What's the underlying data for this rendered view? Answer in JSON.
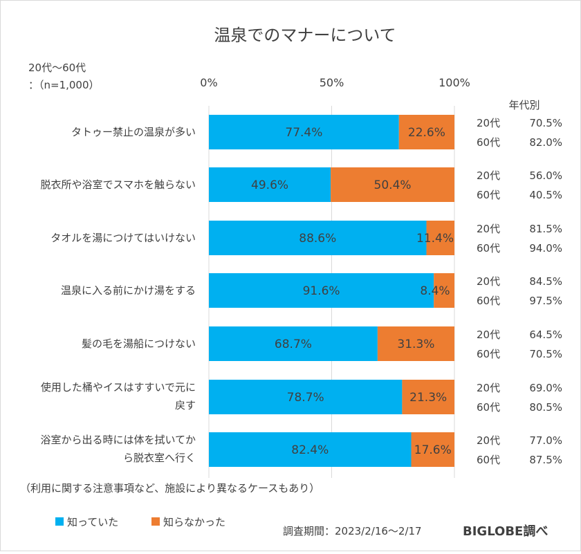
{
  "chart_data": {
    "type": "bar",
    "stacked": true,
    "orientation": "horizontal",
    "title": "温泉でのマナーについて",
    "subtitle_lines": [
      "20代～60代",
      "：（n=1,000）"
    ],
    "x_ticks": [
      "0%",
      "50%",
      "100%"
    ],
    "xlim": [
      0,
      100
    ],
    "categories": [
      [
        "タトゥー禁止の温泉が多い"
      ],
      [
        "脱衣所や浴室でスマホを触らない"
      ],
      [
        "タオルを湯につけてはいけない"
      ],
      [
        "温泉に入る前にかけ湯をする"
      ],
      [
        "髪の毛を湯船につけない"
      ],
      [
        "使用した桶やイスはすすいで元に",
        "戻す"
      ],
      [
        "浴室から出る時には体を拭いてか",
        "ら脱衣室へ行く"
      ]
    ],
    "series": [
      {
        "name": "知っていた",
        "color": "#00b0f0",
        "values": [
          77.4,
          49.6,
          88.6,
          91.6,
          68.7,
          78.7,
          82.4
        ],
        "labels": [
          "77.4%",
          "49.6%",
          "88.6%",
          "91.6%",
          "68.7%",
          "78.7%",
          "82.4%"
        ]
      },
      {
        "name": "知らなかった",
        "color": "#ed7d31",
        "values": [
          22.6,
          50.4,
          11.4,
          8.4,
          31.3,
          21.3,
          17.6
        ],
        "labels": [
          "22.6%",
          "50.4%",
          "11.4%",
          "8.4%",
          "31.3%",
          "21.3%",
          "17.6%"
        ]
      }
    ],
    "age_header": "年代別",
    "age_breakdown": [
      [
        [
          "20代",
          "70.5%"
        ],
        [
          "60代",
          "82.0%"
        ]
      ],
      [
        [
          "20代",
          "56.0%"
        ],
        [
          "60代",
          "40.5%"
        ]
      ],
      [
        [
          "20代",
          "81.5%"
        ],
        [
          "60代",
          "94.0%"
        ]
      ],
      [
        [
          "20代",
          "84.5%"
        ],
        [
          "60代",
          "97.5%"
        ]
      ],
      [
        [
          "20代",
          "64.5%"
        ],
        [
          "60代",
          "70.5%"
        ]
      ],
      [
        [
          "20代",
          "69.0%"
        ],
        [
          "60代",
          "80.5%"
        ]
      ],
      [
        [
          "20代",
          "77.0%"
        ],
        [
          "60代",
          "87.5%"
        ]
      ]
    ],
    "legend_position": "bottom-left",
    "grid": true
  },
  "footnote": "（利用に関する注意事項など、施設により異なるケースもあり）",
  "survey_period": "調査期間：2023/2/16～2/17",
  "source_brand": "BIGLOBE調べ"
}
